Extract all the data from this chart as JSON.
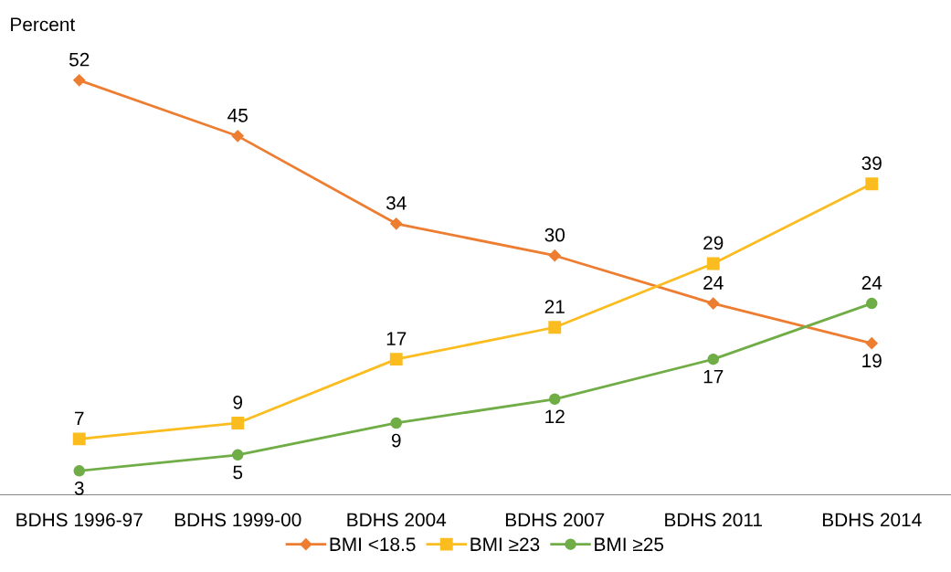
{
  "chart_data": {
    "type": "line",
    "ylabel": "Percent",
    "categories": [
      "BDHS 1996-97",
      "BDHS 1999-00",
      "BDHS 2004",
      "BDHS 2007",
      "BDHS 2011",
      "BDHS 2014"
    ],
    "series": [
      {
        "name": "BMI <18.5",
        "color": "#ed7d31",
        "marker": "diamond",
        "values": [
          52,
          45,
          34,
          30,
          24,
          19
        ]
      },
      {
        "name": "BMI ≥23",
        "color": "#fbbc1f",
        "marker": "square",
        "values": [
          7,
          9,
          17,
          21,
          29,
          39
        ]
      },
      {
        "name": "BMI ≥25",
        "color": "#70ad47",
        "marker": "circle",
        "values": [
          3,
          5,
          9,
          12,
          17,
          24
        ]
      }
    ],
    "data_labels": true,
    "legend": "bottom",
    "grid": false,
    "line_style": "solid"
  }
}
